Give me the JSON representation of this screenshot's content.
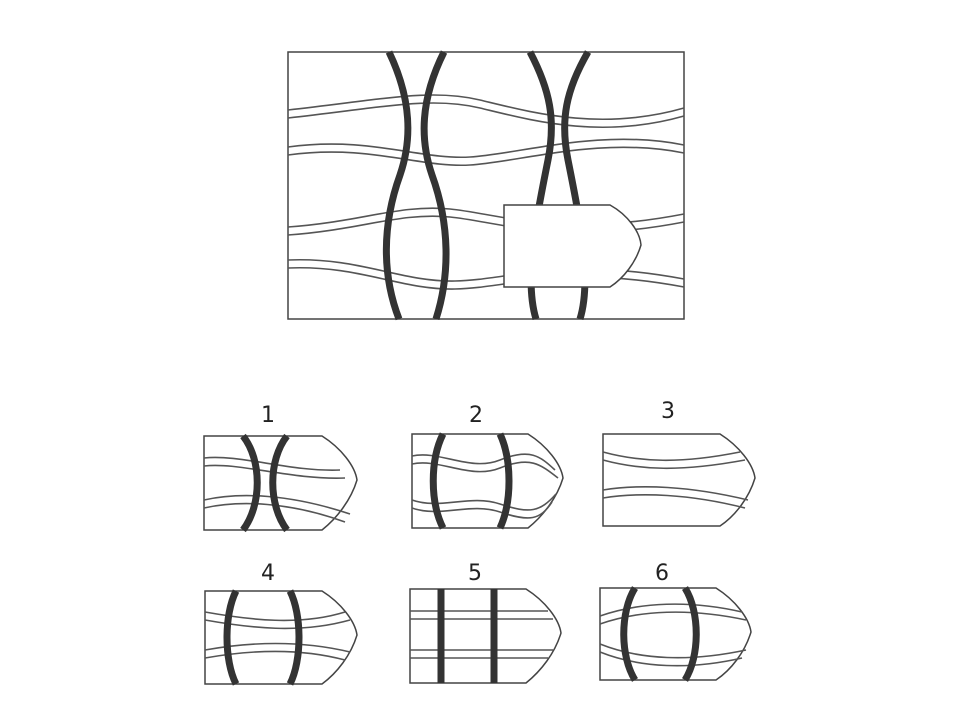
{
  "puzzle": {
    "main_figure": {
      "missing_piece": "blank-pentagon"
    },
    "options": [
      {
        "number": "1"
      },
      {
        "number": "2"
      },
      {
        "number": "3"
      },
      {
        "number": "4"
      },
      {
        "number": "5"
      },
      {
        "number": "6"
      }
    ]
  },
  "colors": {
    "background": "#ffffff",
    "line": "#333333"
  }
}
